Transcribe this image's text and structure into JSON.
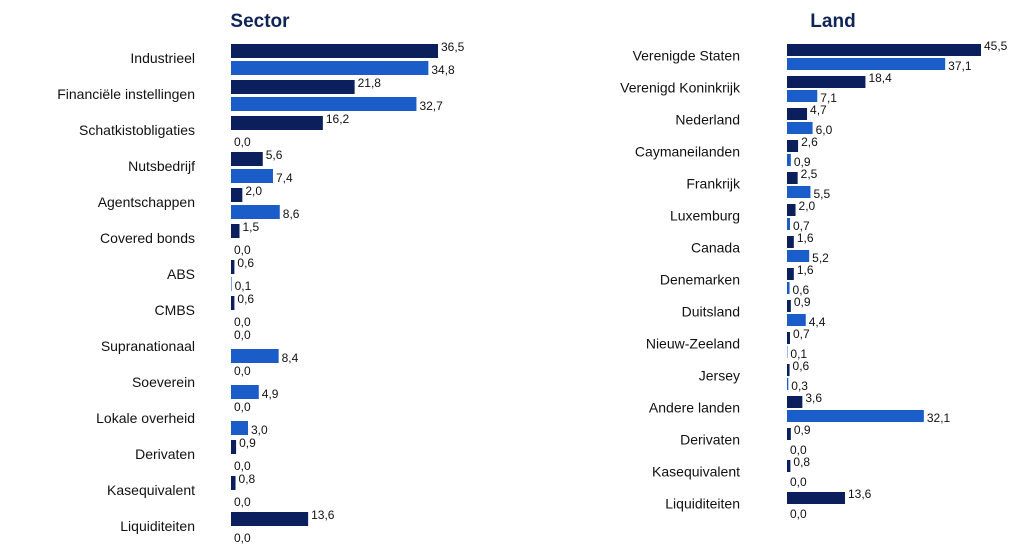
{
  "chart_data": [
    {
      "type": "bar",
      "orientation": "horizontal",
      "title": "Sector",
      "categories": [
        "Industrieel",
        "Financiële instellingen",
        "Schatkistobligaties",
        "Nutsbedrijf",
        "Agentschappen",
        "Covered bonds",
        "ABS",
        "CMBS",
        "Supranationaal",
        "Soeverein",
        "Lokale overheid",
        "Derivaten",
        "Kasequivalent",
        "Liquiditeiten"
      ],
      "series": [
        {
          "color": "#0a1f5c",
          "values": [
            36.5,
            21.8,
            16.2,
            5.6,
            2.0,
            1.5,
            0.6,
            0.6,
            0.0,
            0.0,
            0.0,
            0.9,
            0.8,
            13.6
          ],
          "value_labels": [
            "36,5",
            "21,8",
            "16,2",
            "5,6",
            "2,0",
            "1,5",
            "0,6",
            "0,6",
            "0,0",
            "0,0",
            "0,0",
            "0,9",
            "0,8",
            "13,6"
          ]
        },
        {
          "color": "#1a5cc8",
          "values": [
            34.8,
            32.7,
            0.0,
            7.4,
            8.6,
            0.0,
            0.1,
            0.0,
            8.4,
            4.9,
            3.0,
            0.0,
            0.0,
            0.0
          ],
          "value_labels": [
            "34,8",
            "32,7",
            "0,0",
            "7,4",
            "8,6",
            "0,0",
            "0,1",
            "0,0",
            "8,4",
            "4,9",
            "3,0",
            "0,0",
            "0,0",
            "0,0"
          ]
        }
      ]
    },
    {
      "type": "bar",
      "orientation": "horizontal",
      "title": "Land",
      "categories": [
        "Verenigde Staten",
        "Verenigd Koninkrijk",
        "Nederland",
        "Caymaneilanden",
        "Frankrijk",
        "Luxemburg",
        "Canada",
        "Denemarken",
        "Duitsland",
        "Nieuw-Zeeland",
        "Jersey",
        "Andere landen",
        "Derivaten",
        "Kasequivalent",
        "Liquiditeiten"
      ],
      "series": [
        {
          "color": "#0a1f5c",
          "values": [
            45.5,
            18.4,
            4.7,
            2.6,
            2.5,
            2.0,
            1.6,
            1.6,
            0.9,
            0.7,
            0.6,
            3.6,
            0.9,
            0.8,
            13.6
          ],
          "value_labels": [
            "45,5",
            "18,4",
            "4,7",
            "2,6",
            "2,5",
            "2,0",
            "1,6",
            "1,6",
            "0,9",
            "0,7",
            "0,6",
            "3,6",
            "0,9",
            "0,8",
            "13,6"
          ]
        },
        {
          "color": "#1a5cc8",
          "values": [
            37.1,
            7.1,
            6.0,
            0.9,
            5.5,
            0.7,
            5.2,
            0.6,
            4.4,
            0.1,
            0.3,
            32.1,
            0.0,
            0.0,
            0.0
          ],
          "value_labels": [
            "37,1",
            "7,1",
            "6,0",
            "0,9",
            "5,5",
            "0,7",
            "5,2",
            "0,6",
            "4,4",
            "0,1",
            "0,3",
            "32,1",
            "0,0",
            "0,0",
            "0,0"
          ]
        }
      ]
    }
  ]
}
